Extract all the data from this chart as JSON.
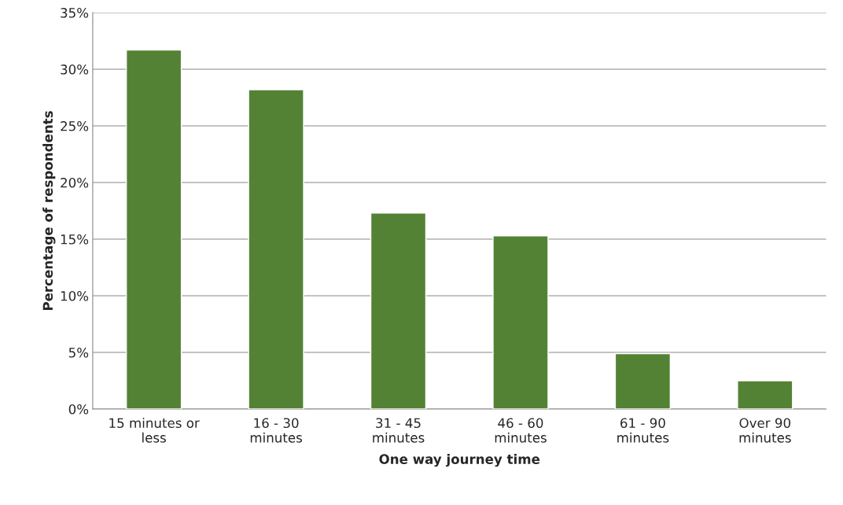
{
  "chart_data": {
    "type": "bar",
    "xlabel": "One way journey time",
    "ylabel": "Percentage of respondents",
    "categories": [
      "15 minutes or\nless",
      "16 - 30\nminutes",
      "31 - 45\nminutes",
      "46 - 60\nminutes",
      "61 - 90\nminutes",
      "Over 90\nminutes"
    ],
    "values": [
      31.7,
      28.2,
      17.3,
      15.3,
      4.9,
      2.5
    ],
    "color": "#548235",
    "ylim": [
      0,
      35
    ],
    "yticks": [
      {
        "value": 0,
        "label": "0%"
      },
      {
        "value": 5,
        "label": "5%"
      },
      {
        "value": 10,
        "label": "10%"
      },
      {
        "value": 15,
        "label": "15%"
      },
      {
        "value": 20,
        "label": "20%"
      },
      {
        "value": 25,
        "label": "25%"
      },
      {
        "value": 30,
        "label": "30%"
      },
      {
        "value": 35,
        "label": "35%"
      }
    ],
    "grid": "y"
  }
}
